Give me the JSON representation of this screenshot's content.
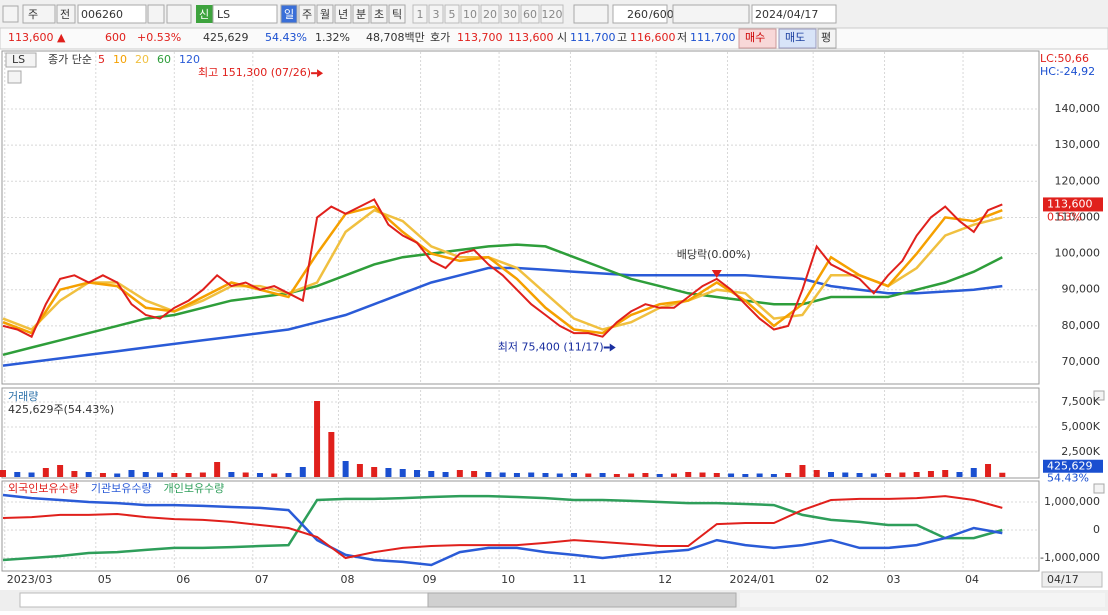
{
  "toolbar": {
    "market": "주",
    "prev": "전",
    "code": "006260",
    "badge": "신",
    "name": "LS",
    "periods": [
      "일",
      "주",
      "월",
      "년",
      "분",
      "초",
      "틱"
    ],
    "intervals": [
      "1",
      "3",
      "5",
      "10",
      "20",
      "30",
      "60",
      "120"
    ],
    "count": "260",
    "max_count": "/600",
    "date": "2024/04/17"
  },
  "info_bar": {
    "price": "113,600 ▲",
    "change": "600",
    "change_pct": "+0.53%",
    "volume": "425,629",
    "volume_ratio": "54.43%",
    "turnover": "1.32%",
    "amount": "48,708백만",
    "quote_label": "호가",
    "ask": "113,700",
    "bid": "113,600",
    "open_label": "시",
    "open": "111,700",
    "high_label": "고",
    "high": "116,600",
    "low_label": "저",
    "low": "111,700",
    "buy": "매수",
    "sell": "매도",
    "avg": "평"
  },
  "chart_data": [
    {
      "type": "line",
      "symbol": "LS",
      "legend_title": "종가 단순",
      "lc_label": "LC:50,66",
      "hc_label": "HC:-24,92",
      "xlim": [
        0,
        290
      ],
      "ylim": [
        64190,
        155780
      ],
      "yticks": [
        {
          "value": 70000,
          "label": "70,000"
        },
        {
          "value": 80000,
          "label": "80,000"
        },
        {
          "value": 90000,
          "label": "90,000"
        },
        {
          "value": 100000,
          "label": "100,000"
        },
        {
          "value": 110000,
          "label": "110,000"
        },
        {
          "value": 120000,
          "label": "120,000"
        },
        {
          "value": 130000,
          "label": "130,000"
        },
        {
          "value": 140000,
          "label": "140,000"
        }
      ],
      "last": {
        "value": 113600,
        "label": "113,600"
      },
      "last_change": "0.53%",
      "x": [
        0,
        8,
        16,
        24,
        32,
        40,
        48,
        56,
        64,
        72,
        80,
        88,
        96,
        104,
        112,
        120,
        128,
        136,
        144,
        152,
        160,
        168,
        176,
        184,
        192,
        200,
        208,
        216,
        224,
        232,
        240,
        248,
        256,
        264,
        272,
        280
      ],
      "series": [
        {
          "name": "5",
          "color": "#e0201c",
          "x": [
            0,
            4,
            8,
            12,
            16,
            20,
            24,
            28,
            32,
            36,
            40,
            44,
            48,
            52,
            56,
            60,
            64,
            68,
            72,
            76,
            80,
            84,
            88,
            92,
            96,
            100,
            104,
            108,
            112,
            116,
            120,
            124,
            128,
            132,
            136,
            140,
            144,
            148,
            152,
            156,
            160,
            164,
            168,
            172,
            176,
            180,
            184,
            188,
            192,
            196,
            200,
            204,
            208,
            212,
            216,
            220,
            224,
            228,
            232,
            236,
            240,
            244,
            248,
            252,
            256,
            260,
            264,
            268,
            272,
            276,
            280
          ],
          "values": [
            80000,
            79000,
            77000,
            86000,
            93000,
            94000,
            92000,
            94000,
            92000,
            86000,
            83000,
            82000,
            85000,
            87000,
            90000,
            94000,
            91000,
            92000,
            90000,
            91000,
            89000,
            87000,
            110000,
            113000,
            111000,
            113000,
            115000,
            108000,
            105000,
            103000,
            98000,
            96000,
            100000,
            101000,
            97000,
            94000,
            90000,
            86000,
            83000,
            80000,
            78000,
            78000,
            77000,
            81000,
            84000,
            86000,
            85000,
            85000,
            88000,
            91000,
            93000,
            90000,
            86000,
            82000,
            79000,
            80000,
            90000,
            102000,
            97000,
            95000,
            93000,
            89000,
            94000,
            98000,
            105000,
            110000,
            113000,
            109000,
            106000,
            112000,
            113600
          ]
        },
        {
          "name": "10",
          "color": "#f5a000",
          "values": [
            81000,
            78000,
            90000,
            92000,
            91000,
            85000,
            84000,
            88000,
            92000,
            90000,
            88000,
            100000,
            111000,
            113000,
            106000,
            100000,
            98000,
            99000,
            93000,
            85000,
            79000,
            78000,
            83000,
            86000,
            87000,
            92000,
            87000,
            80000,
            86000,
            99000,
            94000,
            91000,
            100000,
            110000,
            109000,
            112000
          ]
        },
        {
          "name": "20",
          "color": "#f0c040",
          "values": [
            82000,
            79000,
            87000,
            92000,
            92000,
            87000,
            84000,
            87000,
            91000,
            91000,
            89000,
            92000,
            106000,
            112000,
            109000,
            102000,
            99000,
            99000,
            96000,
            89000,
            82000,
            79000,
            81000,
            85000,
            87000,
            90000,
            89000,
            82000,
            83000,
            94000,
            94000,
            91000,
            96000,
            105000,
            108000,
            110000
          ]
        },
        {
          "name": "60",
          "color": "#2e9e3a",
          "values": [
            72000,
            74000,
            76000,
            78000,
            80000,
            82000,
            83000,
            85000,
            87000,
            88000,
            89000,
            91000,
            94000,
            97000,
            99000,
            100000,
            101000,
            102000,
            102500,
            102000,
            99000,
            96000,
            93000,
            91000,
            89000,
            88000,
            87000,
            86000,
            86000,
            88000,
            88000,
            88000,
            90000,
            92000,
            95000,
            99000
          ]
        },
        {
          "name": "120",
          "color": "#2a5bd7",
          "values": [
            69000,
            70000,
            71000,
            72000,
            73000,
            74000,
            75000,
            76000,
            77000,
            78000,
            79000,
            81000,
            83000,
            86000,
            89000,
            92000,
            94000,
            96000,
            96000,
            95500,
            95000,
            94500,
            94000,
            94000,
            94000,
            94000,
            94000,
            93500,
            93000,
            91000,
            90000,
            89000,
            89000,
            89500,
            90000,
            91000
          ]
        }
      ],
      "annotations": [
        {
          "text": "최고 151,300 (07/26)",
          "x": 88,
          "y": 151300,
          "color": "#e0201c"
        },
        {
          "text": "최저 75,400 (11/17)",
          "x": 170,
          "y": 75400,
          "color": "#1a2fa0"
        },
        {
          "text": "배당락(0.00%)",
          "x": 200,
          "y": 92700,
          "color": "#333333"
        }
      ]
    },
    {
      "type": "bar",
      "title": "거래량",
      "label": "425,629주(54.43%)",
      "up_color": "#e0201c",
      "down_color": "#1a4fd0",
      "xlim": [
        0,
        290
      ],
      "ylim": [
        0,
        8700000
      ],
      "yticks": [
        {
          "value": 2500000,
          "label": "2,500K"
        },
        {
          "value": 5000000,
          "label": "5,000K"
        },
        {
          "value": 7500000,
          "label": "7,500K"
        }
      ],
      "last": {
        "value": 425629,
        "label": "425,629"
      },
      "last_ratio": "54.43%",
      "x": [
        0,
        4,
        8,
        12,
        16,
        20,
        24,
        28,
        32,
        36,
        40,
        44,
        48,
        52,
        56,
        60,
        64,
        68,
        72,
        76,
        80,
        84,
        88,
        92,
        96,
        100,
        104,
        108,
        112,
        116,
        120,
        124,
        128,
        132,
        136,
        140,
        144,
        148,
        152,
        156,
        160,
        164,
        168,
        172,
        176,
        180,
        184,
        188,
        192,
        196,
        200,
        204,
        208,
        212,
        216,
        220,
        224,
        228,
        232,
        236,
        240,
        244,
        248,
        252,
        256,
        260,
        264,
        268,
        272,
        276,
        280
      ],
      "values": [
        700000,
        500000,
        450000,
        900000,
        1200000,
        600000,
        500000,
        400000,
        350000,
        700000,
        500000,
        450000,
        400000,
        400000,
        450000,
        1500000,
        500000,
        450000,
        400000,
        350000,
        400000,
        1000000,
        7600000,
        4500000,
        1600000,
        1300000,
        1000000,
        900000,
        800000,
        700000,
        600000,
        500000,
        700000,
        600000,
        500000,
        450000,
        400000,
        450000,
        400000,
        350000,
        400000,
        350000,
        400000,
        300000,
        350000,
        400000,
        300000,
        350000,
        500000,
        450000,
        400000,
        350000,
        300000,
        350000,
        300000,
        400000,
        1200000,
        700000,
        500000,
        450000,
        400000,
        350000,
        400000,
        450000,
        500000,
        600000,
        700000,
        500000,
        900000,
        1300000,
        425629
      ]
    },
    {
      "type": "line",
      "xlim": [
        0,
        290
      ],
      "ylim": [
        -1428600,
        1714300
      ],
      "yticks": [
        {
          "value": -1000000,
          "label": "-1,000,000"
        },
        0,
        {
          "value": 1000000,
          "label": "1,000,000"
        }
      ],
      "xticks": [
        {
          "value": 0.5,
          "label": "2023/03"
        },
        {
          "value": 26,
          "label": "05"
        },
        {
          "value": 48,
          "label": "06"
        },
        {
          "value": 70,
          "label": "07"
        },
        {
          "value": 94,
          "label": "08"
        },
        {
          "value": 117,
          "label": "09"
        },
        {
          "value": 139,
          "label": "10"
        },
        {
          "value": 159,
          "label": "11"
        },
        {
          "value": 183,
          "label": "12"
        },
        {
          "value": 203,
          "label": "2024/01"
        },
        {
          "value": 227,
          "label": "02"
        },
        {
          "value": 247,
          "label": "03"
        },
        {
          "value": 269,
          "label": "04"
        }
      ],
      "cursor_date": "04/17",
      "x": [
        0,
        8,
        16,
        24,
        32,
        40,
        48,
        56,
        64,
        72,
        80,
        88,
        96,
        104,
        112,
        120,
        128,
        136,
        144,
        152,
        160,
        168,
        176,
        184,
        192,
        200,
        208,
        216,
        224,
        232,
        240,
        248,
        256,
        264,
        272,
        280
      ],
      "series": [
        {
          "name": "외국인보유수량",
          "color": "#e0201c",
          "values": [
            430000,
            460000,
            540000,
            540000,
            570000,
            460000,
            390000,
            360000,
            290000,
            180000,
            70000,
            -250000,
            -1000000,
            -790000,
            -640000,
            -570000,
            -540000,
            -540000,
            -540000,
            -460000,
            -360000,
            -430000,
            -500000,
            -570000,
            -570000,
            210000,
            250000,
            250000,
            710000,
            1070000,
            1110000,
            1110000,
            1140000,
            1210000,
            1070000,
            790000
          ]
        },
        {
          "name": "기관보유수량",
          "color": "#2a5bd7",
          "values": [
            1250000,
            1140000,
            1070000,
            1000000,
            960000,
            890000,
            890000,
            860000,
            820000,
            790000,
            710000,
            -360000,
            -890000,
            -1070000,
            -1140000,
            -1250000,
            -790000,
            -640000,
            -640000,
            -790000,
            -890000,
            -1000000,
            -890000,
            -790000,
            -710000,
            -360000,
            -540000,
            -640000,
            -540000,
            -360000,
            -640000,
            -640000,
            -540000,
            -290000,
            70000,
            -110000
          ]
        },
        {
          "name": "개인보유수량",
          "color": "#2e9e5a",
          "values": [
            -1070000,
            -1000000,
            -930000,
            -820000,
            -790000,
            -710000,
            -640000,
            -640000,
            -610000,
            -570000,
            -540000,
            1070000,
            1110000,
            1110000,
            1140000,
            1180000,
            1210000,
            1210000,
            1180000,
            1140000,
            1070000,
            1070000,
            1040000,
            1000000,
            960000,
            960000,
            930000,
            890000,
            540000,
            360000,
            290000,
            180000,
            180000,
            -290000,
            -290000,
            0
          ]
        }
      ]
    }
  ]
}
